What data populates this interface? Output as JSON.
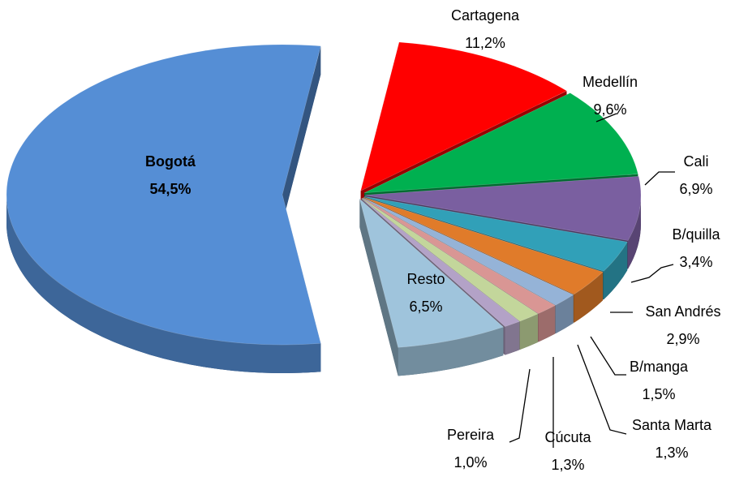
{
  "chart_data": {
    "type": "pie",
    "categories": [
      "Bogotá",
      "Cartagena",
      "Medellín",
      "Cali",
      "B/quilla",
      "San Andrés",
      "B/manga",
      "Santa Marta",
      "Cúcuta",
      "Pereira",
      "Resto"
    ],
    "values": [
      54.5,
      11.2,
      9.6,
      6.9,
      3.4,
      2.9,
      1.5,
      1.3,
      1.3,
      1.0,
      6.5
    ],
    "value_labels": [
      "54,5%",
      "11,2%",
      "9,6%",
      "6,9%",
      "3,4%",
      "2,9%",
      "1,5%",
      "1,3%",
      "1,3%",
      "1,0%",
      "6,5%"
    ],
    "colors": [
      "#558ed5",
      "#ff0000",
      "#00b050",
      "#7a5fa0",
      "#31a0b8",
      "#e07b2a",
      "#95b3d7",
      "#d99694",
      "#c3d69b",
      "#b3a2c7",
      "#9fc4dc"
    ]
  }
}
